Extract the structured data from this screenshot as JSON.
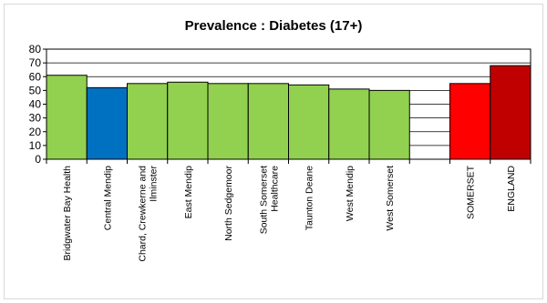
{
  "chart_data": {
    "type": "bar",
    "title": "Prevalence : Diabetes (17+)",
    "xlabel": "",
    "ylabel": "",
    "ylim": [
      0,
      80
    ],
    "yticks": [
      0,
      10,
      20,
      30,
      40,
      50,
      60,
      70,
      80
    ],
    "grid": true,
    "legend": "none",
    "categories": [
      {
        "label": "Bridgwater Bay Health",
        "lines": [
          "Bridgwater Bay Health"
        ],
        "value": 61,
        "color": "#92d050"
      },
      {
        "label": "Central Mendip",
        "lines": [
          "Central Mendip"
        ],
        "value": 52,
        "color": "#0070c0"
      },
      {
        "label": "Chard, Crewkerne and Ilminster",
        "lines": [
          "Chard, Crewkerne and",
          "Ilminster"
        ],
        "value": 55,
        "color": "#92d050"
      },
      {
        "label": "East Mendip",
        "lines": [
          "East Mendip"
        ],
        "value": 56,
        "color": "#92d050"
      },
      {
        "label": "North Sedgemoor",
        "lines": [
          "North Sedgemoor"
        ],
        "value": 55,
        "color": "#92d050"
      },
      {
        "label": "South Somerset Healthcare",
        "lines": [
          "South Somerset",
          "Healthcare"
        ],
        "value": 55,
        "color": "#92d050"
      },
      {
        "label": "Taunton Deane",
        "lines": [
          "Taunton Deane"
        ],
        "value": 54,
        "color": "#92d050"
      },
      {
        "label": "West Mendip",
        "lines": [
          "West Mendip"
        ],
        "value": 51,
        "color": "#92d050"
      },
      {
        "label": "West Somerset",
        "lines": [
          "West Somerset"
        ],
        "value": 50,
        "color": "#92d050"
      },
      {
        "label": "",
        "lines": [],
        "value": null,
        "color": null
      },
      {
        "label": "SOMERSET",
        "lines": [
          "SOMERSET"
        ],
        "value": 55,
        "color": "#ff0000"
      },
      {
        "label": "ENGLAND",
        "lines": [
          "ENGLAND"
        ],
        "value": 68,
        "color": "#c00000"
      }
    ]
  }
}
